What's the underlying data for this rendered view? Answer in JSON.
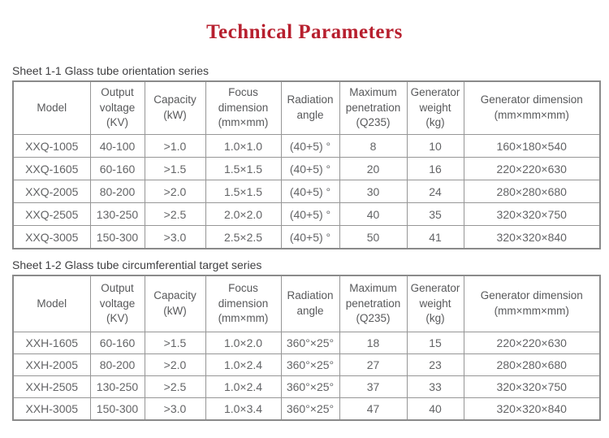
{
  "page": {
    "title": "Technical Parameters"
  },
  "colors": {
    "title_red": "#b71f2e",
    "table_text_gray": "#636466",
    "border_gray": "#969696"
  },
  "tables": [
    {
      "caption": "Sheet 1-1 Glass tube orientation series",
      "columns": [
        "Model",
        "Output\nvoltage\n(KV)",
        "Capacity\n(kW)",
        "Focus\ndimension\n(mm×mm)",
        "Radiation\nangle",
        "Maximum\npenetration\n(Q235)",
        "Generator\nweight\n(kg)",
        "Generator dimension\n(mm×mm×mm)"
      ],
      "rows": [
        [
          "XXQ-1005",
          "40-100",
          ">1.0",
          "1.0×1.0",
          "(40+5) °",
          "8",
          "10",
          "160×180×540"
        ],
        [
          "XXQ-1605",
          "60-160",
          ">1.5",
          "1.5×1.5",
          "(40+5) °",
          "20",
          "16",
          "220×220×630"
        ],
        [
          "XXQ-2005",
          "80-200",
          ">2.0",
          "1.5×1.5",
          "(40+5) °",
          "30",
          "24",
          "280×280×680"
        ],
        [
          "XXQ-2505",
          "130-250",
          ">2.5",
          "2.0×2.0",
          "(40+5) °",
          "40",
          "35",
          "320×320×750"
        ],
        [
          "XXQ-3005",
          "150-300",
          ">3.0",
          "2.5×2.5",
          "(40+5) °",
          "50",
          "41",
          "320×320×840"
        ]
      ]
    },
    {
      "caption": "Sheet 1-2 Glass tube circumferential target series",
      "columns": [
        "Model",
        "Output\nvoltage\n(KV)",
        "Capacity\n(kW)",
        "Focus\ndimension\n(mm×mm)",
        "Radiation\nangle",
        "Maximum\npenetration\n(Q235)",
        "Generator\nweight\n(kg)",
        "Generator dimension\n(mm×mm×mm)"
      ],
      "rows": [
        [
          "XXH-1605",
          "60-160",
          ">1.5",
          "1.0×2.0",
          "360°×25°",
          "18",
          "15",
          "220×220×630"
        ],
        [
          "XXH-2005",
          "80-200",
          ">2.0",
          "1.0×2.4",
          "360°×25°",
          "27",
          "23",
          "280×280×680"
        ],
        [
          "XXH-2505",
          "130-250",
          ">2.5",
          "1.0×2.4",
          "360°×25°",
          "37",
          "33",
          "320×320×750"
        ],
        [
          "XXH-3005",
          "150-300",
          ">3.0",
          "1.0×3.4",
          "360°×25°",
          "47",
          "40",
          "320×320×840"
        ]
      ]
    }
  ]
}
